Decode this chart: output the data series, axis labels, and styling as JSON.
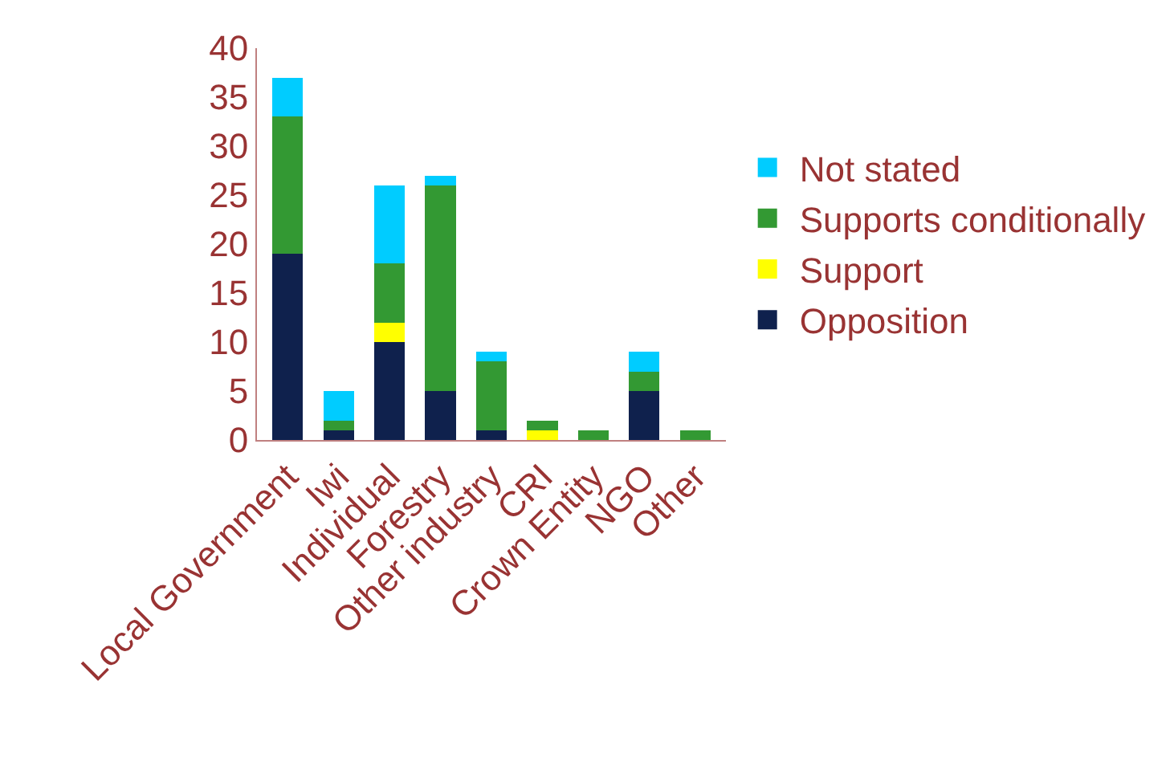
{
  "chart_data": {
    "type": "bar",
    "stacked": true,
    "categories": [
      "Local Government",
      "Iwi",
      "Individual",
      "Forestry",
      "Other industry",
      "CRI",
      "Crown Entity",
      "NGO",
      "Other"
    ],
    "series": [
      {
        "name": "Opposition",
        "color": "#0f214d",
        "values": [
          19,
          1,
          10,
          5,
          1,
          0,
          0,
          5,
          0
        ]
      },
      {
        "name": "Support",
        "color": "#ffff00",
        "values": [
          0,
          0,
          2,
          0,
          0,
          1,
          0,
          0,
          0
        ]
      },
      {
        "name": "Supports conditionally",
        "color": "#339933",
        "values": [
          14,
          1,
          6,
          21,
          7,
          1,
          1,
          2,
          1
        ]
      },
      {
        "name": "Not stated",
        "color": "#00ccff",
        "values": [
          4,
          3,
          8,
          1,
          1,
          0,
          0,
          2,
          0
        ]
      }
    ],
    "ylim": [
      0,
      40
    ],
    "yticks": [
      0,
      5,
      10,
      15,
      20,
      25,
      30,
      35,
      40
    ],
    "grid": false,
    "legend": "right"
  }
}
